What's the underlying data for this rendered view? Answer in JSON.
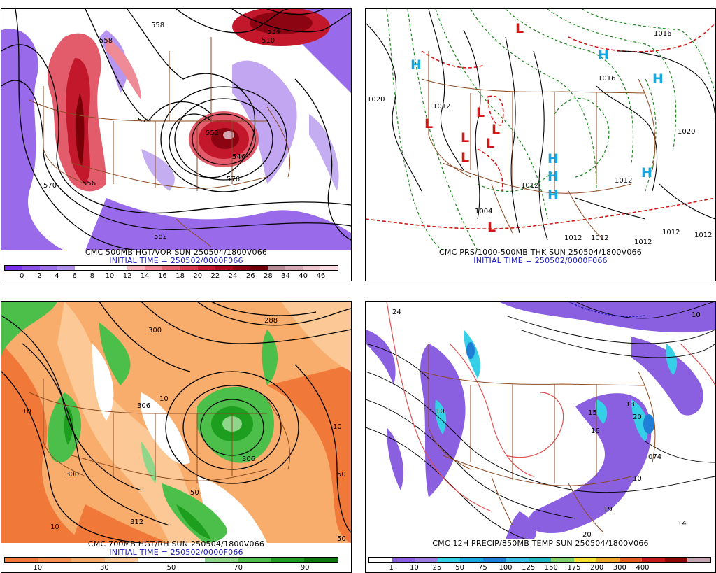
{
  "panels": [
    {
      "id": "p1",
      "title": "CMC 500MB HGT/VOR SUN 250504/1800V066",
      "init": "INITIAL TIME = 250502/0000F066",
      "contour_labels": [
        "558",
        "534",
        "510",
        "570",
        "558",
        "576",
        "582",
        "556",
        "570",
        "546",
        "552"
      ],
      "colorbar": {
        "colors": [
          "#7a2ee8",
          "#8e4fe8",
          "#9f6fe8",
          "#b08fe8",
          "#ffffff",
          "#ffffff",
          "#ffffff",
          "#f7b7bf",
          "#ee8b97",
          "#e26270",
          "#d53b4a",
          "#c31a2c",
          "#a80c1c",
          "#8c0412",
          "#700008",
          "#b88a95",
          "#d5a6b1",
          "#f0c4cf",
          "#fad9e3"
        ],
        "ticks": [
          "0",
          "2",
          "4",
          "6",
          "8",
          "10",
          "12",
          "14",
          "16",
          "18",
          "20",
          "22",
          "24",
          "26",
          "28",
          "34",
          "40",
          "46"
        ]
      }
    },
    {
      "id": "p2",
      "title": "CMC PRS/1000-500MB THK SUN 250504/1800V066",
      "init": "INITIAL TIME = 250502/0000F066",
      "isobar_labels": [
        "1020",
        "1012",
        "1012",
        "1004",
        "1012",
        "1012",
        "1012",
        "1020",
        "1012",
        "1012",
        "1012",
        "1016",
        "1016"
      ],
      "highs": [
        "H",
        "H",
        "H",
        "H",
        "H",
        "H",
        "H"
      ],
      "lows": [
        "L",
        "L",
        "L",
        "L",
        "L",
        "L",
        "L",
        "L"
      ]
    },
    {
      "id": "p3",
      "title": "CMC 700MB HGT/RH SUN 250504/1800V066",
      "init": "INITIAL TIME = 250502/0000F066",
      "contour_labels": [
        "288",
        "300",
        "306",
        "300",
        "312",
        "306",
        "10",
        "10",
        "10",
        "50",
        "50",
        "10",
        "50"
      ],
      "colorbar": {
        "colors": [
          "#f07838",
          "#f5924f",
          "#f9ad6c",
          "#fcc896",
          "#ffffff",
          "#ffffff",
          "#8fd68a",
          "#4cbf4a",
          "#1e9e1e",
          "#0a780a"
        ],
        "ticks": [
          "10",
          "30",
          "50",
          "70",
          "90"
        ]
      }
    },
    {
      "id": "p4",
      "title": "CMC 12H PRECIP/850MB TEMP SUN 250504/1800V066",
      "init": "",
      "markers": [
        "15",
        "16",
        "13",
        "20",
        "19",
        "074",
        "10",
        "24",
        "10",
        "10",
        "14",
        "20"
      ],
      "colorbar": {
        "colors": [
          "#ffffff",
          "#8a5fe0",
          "#9c7be6",
          "#35d0e8",
          "#18a7e0",
          "#1f7fd6",
          "#39bde8",
          "#22b5c4",
          "#7fd26a",
          "#f2e032",
          "#f0a62a",
          "#e25e1e",
          "#c41a1a",
          "#8a0808",
          "#c4a4b0"
        ],
        "ticks": [
          "1",
          "10",
          "25",
          "50",
          "75",
          "100",
          "125",
          "150",
          "175",
          "200",
          "300",
          "400"
        ]
      }
    }
  ]
}
